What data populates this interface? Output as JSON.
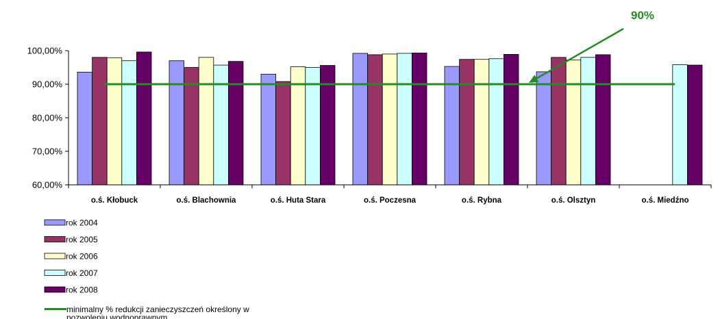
{
  "chart_data": {
    "type": "bar",
    "title": "",
    "xlabel": "",
    "ylabel": "",
    "ylim": [
      60,
      100
    ],
    "yticks": [
      "60,00%",
      "70,00%",
      "80,00%",
      "90,00%",
      "100,00%"
    ],
    "grid": false,
    "legend_position": "bottom-left",
    "categories": [
      "o.ś. Kłobuck",
      "o.ś. Blachownia",
      "o.ś. Huta Stara",
      "o.ś. Poczesna",
      "o.ś. Rybna",
      "o.ś. Olsztyn",
      "o.ś. Miedźno"
    ],
    "series": [
      {
        "name": "rok 2004",
        "color": "#9999ff",
        "values": [
          93.6,
          97.0,
          93.0,
          99.2,
          95.3,
          93.7,
          null
        ]
      },
      {
        "name": "rok 2005",
        "color": "#993366",
        "values": [
          98.0,
          95.0,
          90.8,
          98.8,
          97.4,
          98.0,
          null
        ]
      },
      {
        "name": "rok 2006",
        "color": "#ffffcc",
        "values": [
          97.9,
          98.0,
          95.2,
          99.0,
          97.4,
          97.2,
          null
        ]
      },
      {
        "name": "rok 2007",
        "color": "#ccffff",
        "values": [
          97.0,
          95.7,
          95.0,
          99.2,
          97.6,
          98.0,
          95.8
        ]
      },
      {
        "name": "rok 2008",
        "color": "#660066",
        "values": [
          99.6,
          96.8,
          95.6,
          99.3,
          98.9,
          98.8,
          95.7
        ]
      }
    ],
    "reference_line": {
      "name": "minimalny % redukcji zanieczyszczeń określony w pozwoleniu wodnoprawnym",
      "value": 90,
      "color": "#228b22"
    },
    "annotation": {
      "text": "90%",
      "color": "#228b22"
    }
  }
}
